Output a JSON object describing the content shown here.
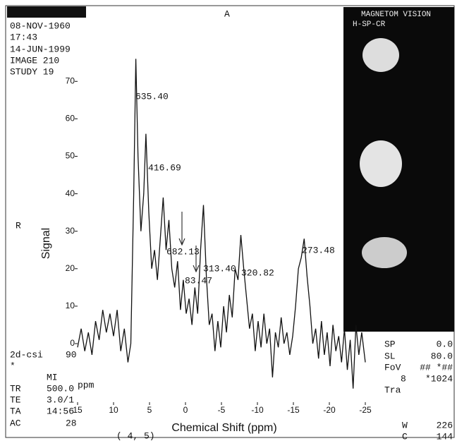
{
  "chart_data": {
    "type": "line",
    "x_label": "Chemical Shift (ppm)",
    "y_label": "Signal",
    "xlim": [
      15,
      -25
    ],
    "xticks": [
      15,
      10,
      5,
      0,
      -5,
      -10,
      -15,
      -20,
      -25
    ],
    "ylim": [
      -15,
      80
    ],
    "yticks": [
      0,
      10,
      20,
      30,
      40,
      50,
      60,
      70
    ],
    "color": "#111",
    "x": [
      15,
      14.5,
      14,
      13.5,
      13,
      12.5,
      12,
      11.5,
      11,
      10.5,
      10,
      9.5,
      9,
      8.5,
      8,
      7.6,
      7.2,
      6.9,
      6.6,
      6.2,
      5.8,
      5.5,
      5.1,
      4.7,
      4.3,
      3.9,
      3.5,
      3.1,
      2.7,
      2.3,
      1.9,
      1.5,
      1.1,
      0.7,
      0.3,
      -0.1,
      -0.5,
      -0.9,
      -1.3,
      -1.7,
      -2.1,
      -2.5,
      -2.9,
      -3.3,
      -3.7,
      -4.1,
      -4.5,
      -4.9,
      -5.3,
      -5.7,
      -6.1,
      -6.5,
      -6.9,
      -7.3,
      -7.7,
      -8.1,
      -8.5,
      -8.9,
      -9.3,
      -9.7,
      -10.1,
      -10.5,
      -10.9,
      -11.3,
      -11.7,
      -12.1,
      -12.5,
      -12.9,
      -13.3,
      -13.7,
      -14.1,
      -14.5,
      -14.9,
      -15.3,
      -15.7,
      -16.1,
      -16.5,
      -16.9,
      -17.3,
      -17.7,
      -18.1,
      -18.5,
      -18.9,
      -19.3,
      -19.7,
      -20.1,
      -20.5,
      -20.9,
      -21.3,
      -21.7,
      -22.1,
      -22.5,
      -22.9,
      -23.3,
      -23.7,
      -24.1,
      -24.5,
      -25
    ],
    "values": [
      -1,
      4,
      -2,
      3,
      -3,
      6,
      1,
      9,
      3,
      8,
      2,
      9,
      -2,
      4,
      -5,
      0,
      40,
      76,
      50,
      30,
      40,
      56,
      35,
      20,
      25,
      17,
      28,
      39,
      25,
      33,
      20,
      15,
      22,
      9,
      17,
      8,
      12,
      5,
      15,
      8,
      25,
      37,
      18,
      5,
      8,
      -2,
      6,
      -1,
      10,
      3,
      13,
      7,
      20,
      17,
      29,
      20,
      12,
      4,
      8,
      -2,
      6,
      -1,
      8,
      0,
      4,
      -9,
      3,
      -1,
      7,
      0,
      3,
      -3,
      2,
      10,
      20,
      23,
      28,
      18,
      10,
      0,
      4,
      -4,
      6,
      -3,
      3,
      -6,
      5,
      -2,
      2,
      -5,
      4,
      -7,
      1,
      -12,
      5,
      -3,
      3,
      -5
    ],
    "annotations": [
      "635.40",
      "416.69",
      "682.13",
      "313.40",
      "83.47",
      "320.82",
      "273.48"
    ]
  },
  "overlay": {
    "top_left": [
      "08-NOV-1960",
      "17:43",
      "14-JUN-1999",
      "IMAGE 210",
      "STUDY 19"
    ],
    "top_center": "A",
    "left": "R",
    "bottom_left": [
      "2d-csi",
      "*",
      "MI",
      "TR",
      "TE",
      "TA",
      "AC"
    ],
    "bottom_left_values": [
      "90",
      "ppm",
      "500.0",
      "3.0/1",
      "14:56",
      "28"
    ],
    "bottom_center": "( 4, 5)",
    "scanner": [
      "MAGNETOM VISION",
      "H-SP-CR"
    ],
    "bottom_right_keys": [
      "SP",
      "SL",
      "FoV",
      "8",
      "Tra"
    ],
    "bottom_right_values": [
      "0.0",
      "80.0",
      "## *##",
      "*1024"
    ],
    "window": [
      "W",
      "C"
    ],
    "window_values": [
      "226",
      "144"
    ]
  }
}
